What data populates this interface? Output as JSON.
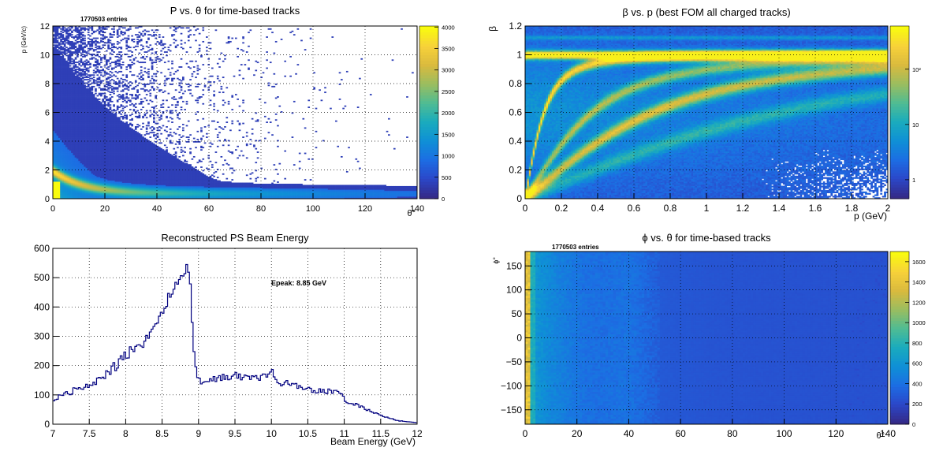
{
  "chart_data": [
    {
      "id": "p-vs-theta",
      "type": "heatmap",
      "title": "P vs. θ for time-based tracks",
      "entries_label": "1770503 entries",
      "xlabel": "θ°",
      "ylabel": "p (GeV/c)",
      "xlim": [
        0,
        140
      ],
      "ylim": [
        0,
        12
      ],
      "x_ticks": [
        "0",
        "20",
        "40",
        "60",
        "80",
        "100",
        "120",
        "140"
      ],
      "y_ticks": [
        "0",
        "2",
        "4",
        "6",
        "8",
        "10",
        "12"
      ],
      "z_ticks": [
        "0",
        "500",
        "1000",
        "1500",
        "2000",
        "2500",
        "3000",
        "3500",
        "4000"
      ],
      "zlim": [
        0,
        4000
      ],
      "grid": true,
      "colormap": [
        "#352a87",
        "#2b47c9",
        "#1c6ee3",
        "#0f90d6",
        "#1aabbd",
        "#4fbc93",
        "#9abd5f",
        "#d9ba3e",
        "#f7d13a",
        "#f9fb0e"
      ]
    },
    {
      "id": "beta-vs-p",
      "type": "heatmap",
      "title": "β vs. p (best FOM all charged tracks)",
      "xlabel": "p (GeV)",
      "ylabel": "β",
      "xlim": [
        0,
        2
      ],
      "ylim": [
        0,
        1.2
      ],
      "x_ticks": [
        "0",
        "0.2",
        "0.4",
        "0.6",
        "0.8",
        "1",
        "1.2",
        "1.4",
        "1.6",
        "1.8",
        "2"
      ],
      "y_ticks": [
        "0",
        "0.2",
        "0.4",
        "0.6",
        "0.8",
        "1",
        "1.2"
      ],
      "z_scale": "log",
      "z_ticks": [
        "1",
        "10",
        "10²"
      ],
      "grid": true,
      "colormap": [
        "#352a87",
        "#2b47c9",
        "#1c6ee3",
        "#0f90d6",
        "#1aabbd",
        "#4fbc93",
        "#9abd5f",
        "#d9ba3e",
        "#f7d13a",
        "#f9fb0e"
      ]
    },
    {
      "id": "ps-beam-energy",
      "type": "line",
      "style": "histogram-step",
      "title": "Reconstructed PS Beam Energy",
      "xlabel": "Beam Energy (GeV)",
      "ylabel": "",
      "xlim": [
        7,
        12
      ],
      "ylim": [
        0,
        620
      ],
      "x_ticks": [
        "7",
        "7.5",
        "8",
        "8.5",
        "9",
        "9.5",
        "10",
        "10.5",
        "11",
        "11.5",
        "12"
      ],
      "y_ticks": [
        "0",
        "100",
        "200",
        "300",
        "400",
        "500",
        "600"
      ],
      "annotation": "Epeak: 8.85 GeV",
      "grid": true,
      "color": "#00007f",
      "x": [
        7.0,
        7.25,
        7.5,
        7.75,
        8.0,
        8.25,
        8.5,
        8.6,
        8.7,
        8.8,
        8.85,
        8.88,
        8.92,
        9.0,
        9.1,
        9.25,
        9.5,
        9.75,
        9.95,
        10.0,
        10.05,
        10.25,
        10.5,
        10.75,
        10.95,
        11.0,
        11.25,
        11.5,
        11.75,
        12.0
      ],
      "values": [
        85,
        115,
        135,
        175,
        245,
        290,
        390,
        450,
        500,
        540,
        575,
        520,
        300,
        150,
        150,
        165,
        170,
        160,
        175,
        205,
        150,
        140,
        125,
        115,
        110,
        85,
        60,
        30,
        12,
        5
      ]
    },
    {
      "id": "phi-vs-theta",
      "type": "heatmap",
      "title": "ϕ vs. θ for time-based tracks",
      "entries_label": "1770503 entries",
      "xlabel": "θ°",
      "ylabel": "ϕ°",
      "xlim": [
        0,
        140
      ],
      "ylim": [
        -180,
        180
      ],
      "x_ticks": [
        "0",
        "20",
        "40",
        "60",
        "80",
        "100",
        "120",
        "140"
      ],
      "y_ticks": [
        "−150",
        "−100",
        "−50",
        "0",
        "50",
        "100",
        "150"
      ],
      "z_ticks": [
        "0",
        "200",
        "400",
        "600",
        "800",
        "1000",
        "1200",
        "1400",
        "1600"
      ],
      "zlim": [
        0,
        1700
      ],
      "grid": true,
      "colormap": [
        "#352a87",
        "#2b47c9",
        "#1c6ee3",
        "#0f90d6",
        "#1aabbd",
        "#4fbc93",
        "#9abd5f",
        "#d9ba3e",
        "#f7d13a",
        "#f9fb0e"
      ]
    }
  ]
}
